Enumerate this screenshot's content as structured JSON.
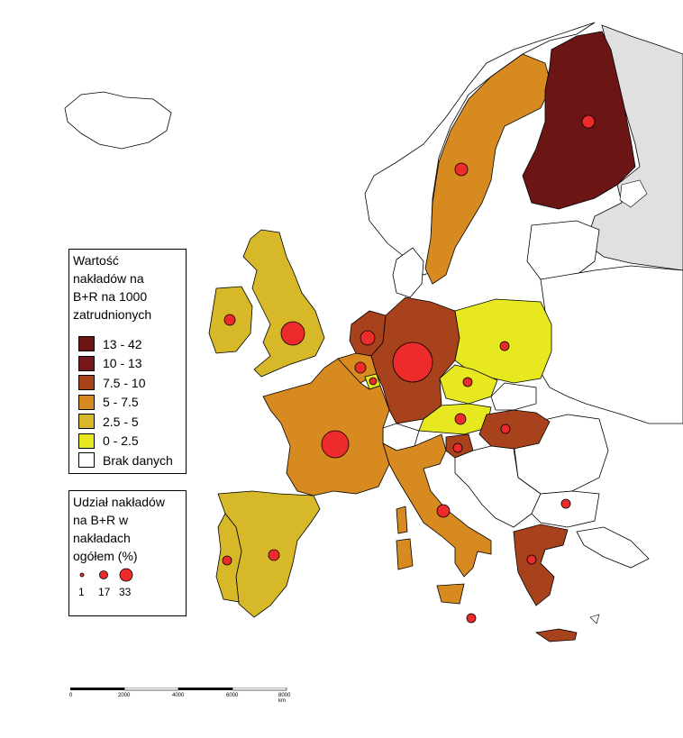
{
  "legend_value": {
    "title_lines": [
      "Wartość",
      "nakładów na",
      "B+R na 1000",
      "zatrudnionych"
    ],
    "classes": [
      {
        "label": "13 - 42",
        "color": "#6b1515"
      },
      {
        "label": "10 - 13",
        "color": "#75161a"
      },
      {
        "label": "7.5 - 10",
        "color": "#a8421c"
      },
      {
        "label": "5 - 7.5",
        "color": "#d78a20"
      },
      {
        "label": "2.5 - 5",
        "color": "#d6b829"
      },
      {
        "label": "0 - 2.5",
        "color": "#e8e820"
      },
      {
        "label": "Brak danych",
        "color": "#ffffff"
      }
    ]
  },
  "legend_share": {
    "title_lines": [
      "Udział nakładów",
      "na B+R w",
      "nakładach",
      "ogółem (%)"
    ],
    "sizes": [
      {
        "label": "1",
        "value": 1
      },
      {
        "label": "17",
        "value": 17
      },
      {
        "label": "33",
        "value": 33
      }
    ]
  },
  "scalebar": {
    "ticks": [
      "0",
      "2000",
      "4000",
      "6000",
      "8000 km"
    ]
  },
  "colors": {
    "marker_fill": "#ee2b2b",
    "outside_region": "#e0e0e0",
    "borders": "#000000"
  }
}
